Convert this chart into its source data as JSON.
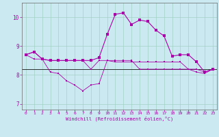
{
  "xlabel": "Windchill (Refroidissement éolien,°C)",
  "bg_color": "#cbe9f0",
  "grid_color": "#99ccbb",
  "line_color": "#aa00aa",
  "spine_color": "#666666",
  "xlim": [
    -0.5,
    23.5
  ],
  "ylim": [
    6.8,
    10.5
  ],
  "yticks": [
    7,
    8,
    9,
    10
  ],
  "xticks": [
    0,
    1,
    2,
    3,
    4,
    5,
    6,
    7,
    8,
    9,
    10,
    11,
    12,
    13,
    14,
    15,
    16,
    17,
    18,
    19,
    20,
    21,
    22,
    23
  ],
  "line1_x": [
    0,
    1,
    2,
    3,
    4,
    5,
    6,
    7,
    8,
    9,
    10,
    11,
    12,
    13,
    14,
    15,
    16,
    17,
    18,
    19,
    20,
    21,
    22,
    23
  ],
  "line1_y": [
    8.7,
    8.8,
    8.55,
    8.1,
    8.05,
    7.8,
    7.65,
    7.45,
    7.65,
    7.7,
    8.5,
    8.45,
    8.45,
    8.45,
    8.45,
    8.45,
    8.45,
    8.45,
    8.45,
    8.45,
    8.2,
    8.1,
    8.05,
    8.2
  ],
  "line2_x": [
    0,
    1,
    2,
    3,
    4,
    5,
    6,
    7,
    8,
    9,
    10,
    11,
    12,
    13,
    14,
    15,
    16,
    17,
    18,
    19,
    20,
    21,
    22,
    23
  ],
  "line2_y": [
    8.7,
    8.8,
    8.55,
    8.5,
    8.5,
    8.5,
    8.5,
    8.5,
    8.5,
    8.6,
    9.4,
    10.1,
    10.15,
    9.75,
    9.9,
    9.85,
    9.55,
    9.35,
    8.65,
    8.7,
    8.7,
    8.45,
    8.1,
    8.2
  ],
  "line3_x": [
    0,
    1,
    2,
    3,
    4,
    5,
    6,
    7,
    8,
    9,
    10,
    11,
    12,
    13,
    14,
    15,
    16,
    17,
    18,
    19,
    20,
    21,
    22,
    23
  ],
  "line3_y": [
    8.7,
    8.55,
    8.55,
    8.5,
    8.5,
    8.5,
    8.5,
    8.5,
    8.2,
    8.5,
    8.5,
    8.5,
    8.5,
    8.5,
    8.2,
    8.2,
    8.2,
    8.2,
    8.2,
    8.2,
    8.2,
    8.2,
    8.1,
    8.2
  ],
  "flat_line_y": 8.2,
  "lw_thin": 0.6,
  "lw_main": 0.8,
  "ms": 1.8
}
